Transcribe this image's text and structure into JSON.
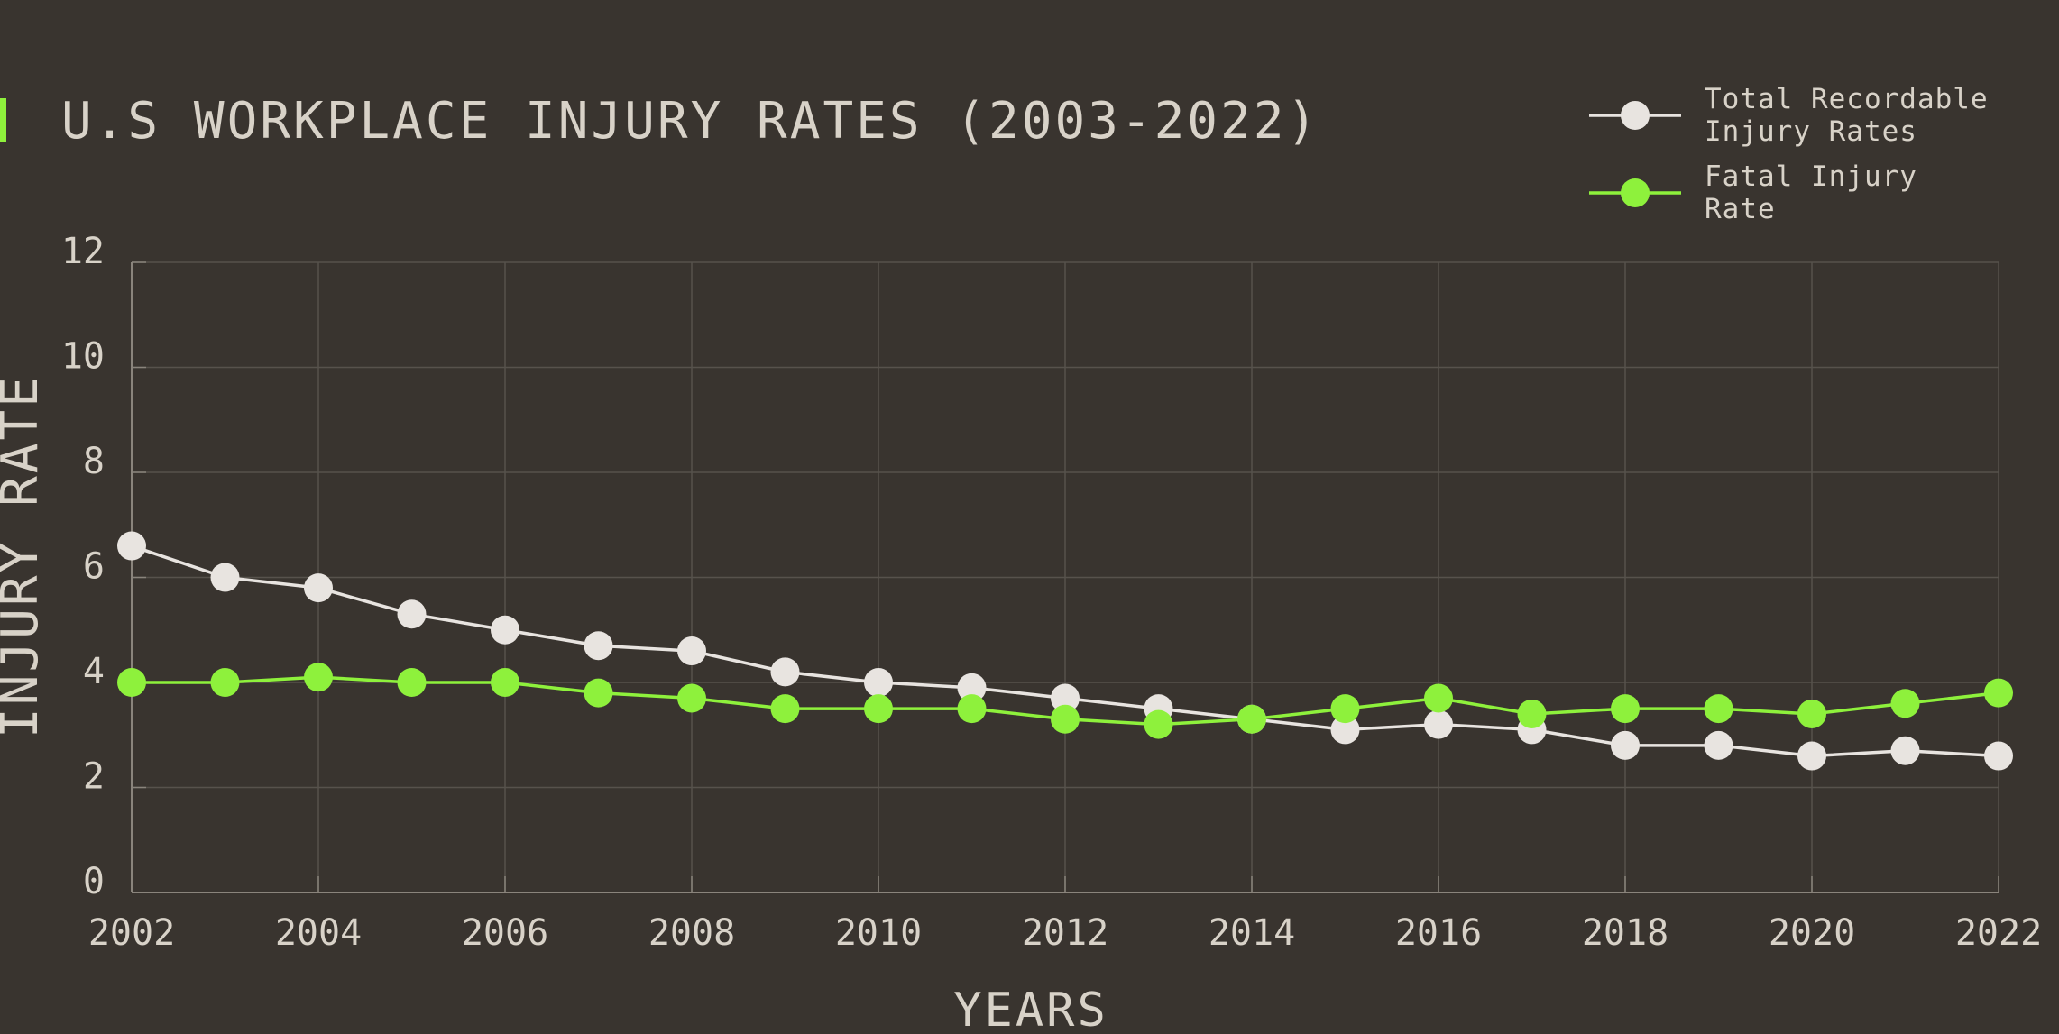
{
  "chart_data": {
    "type": "line",
    "title": "U.S WORKPLACE INJURY RATES (2003-2022)",
    "x_label": "YEARS",
    "y_label": "INJURY RATE",
    "x": [
      2002,
      2003,
      2004,
      2005,
      2006,
      2007,
      2008,
      2009,
      2010,
      2011,
      2012,
      2013,
      2014,
      2015,
      2016,
      2017,
      2018,
      2019,
      2020,
      2021,
      2022
    ],
    "series": [
      {
        "name": "Total Recordable Injury Rates",
        "color": "#e8e4e0",
        "values": [
          6.6,
          6.0,
          5.8,
          5.3,
          5.0,
          4.7,
          4.6,
          4.2,
          4.0,
          3.9,
          3.7,
          3.5,
          3.3,
          3.1,
          3.2,
          3.1,
          2.8,
          2.8,
          2.6,
          2.7,
          2.6
        ]
      },
      {
        "name": "Fatal Injury Rate",
        "color": "#8ef13c",
        "values": [
          4.0,
          4.0,
          4.1,
          4.0,
          4.0,
          3.8,
          3.7,
          3.5,
          3.5,
          3.5,
          3.3,
          3.2,
          3.3,
          3.5,
          3.7,
          3.4,
          3.5,
          3.5,
          3.4,
          3.6,
          3.8
        ]
      }
    ],
    "xlim": [
      2002,
      2022
    ],
    "xticks": [
      2002,
      2004,
      2006,
      2008,
      2010,
      2012,
      2014,
      2016,
      2018,
      2020,
      2022
    ],
    "ylim": [
      0,
      12
    ],
    "yticks": [
      0,
      2,
      4,
      6,
      8,
      10,
      12
    ],
    "grid": true,
    "legend": "top-right"
  }
}
